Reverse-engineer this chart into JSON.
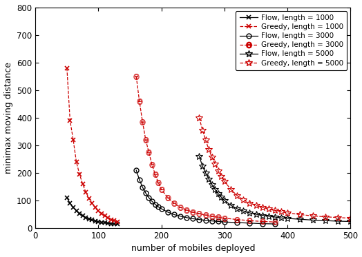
{
  "title": "",
  "xlabel": "number of mobiles deployed",
  "ylabel": "minimax moving distance",
  "xlim": [
    0,
    500
  ],
  "ylim": [
    0,
    800
  ],
  "xticks": [
    0,
    100,
    200,
    300,
    400,
    500
  ],
  "yticks": [
    0,
    100,
    200,
    300,
    400,
    500,
    600,
    700,
    800
  ],
  "legend_entries": [
    "Flow, length = 1000",
    "Greedy, length = 1000",
    "Flow, length = 3000",
    "Greedy, length = 3000",
    "Flow, length = 5000",
    "Greedy, length = 5000"
  ],
  "flow_color": "#000000",
  "greedy_color": "#cc0000",
  "series": {
    "flow_1000": {
      "x": [
        50,
        55,
        60,
        65,
        70,
        75,
        80,
        85,
        90,
        95,
        100,
        105,
        110,
        115,
        120,
        125,
        130
      ],
      "y": [
        110,
        90,
        75,
        62,
        52,
        44,
        38,
        33,
        29,
        26,
        23,
        21,
        19,
        17,
        16,
        15,
        14
      ]
    },
    "greedy_1000": {
      "x": [
        50,
        55,
        60,
        65,
        70,
        75,
        80,
        85,
        90,
        95,
        100,
        105,
        110,
        115,
        120,
        125,
        130
      ],
      "y": [
        580,
        390,
        320,
        240,
        195,
        160,
        130,
        108,
        90,
        75,
        62,
        52,
        44,
        37,
        31,
        27,
        23
      ]
    },
    "flow_3000": {
      "x": [
        160,
        165,
        170,
        175,
        180,
        185,
        190,
        195,
        200,
        210,
        220,
        230,
        240,
        250,
        260,
        270,
        280,
        290,
        300,
        320,
        340,
        360,
        380
      ],
      "y": [
        210,
        175,
        148,
        127,
        110,
        97,
        86,
        77,
        70,
        58,
        49,
        43,
        38,
        34,
        31,
        28,
        26,
        24,
        22,
        20,
        18,
        16,
        15
      ]
    },
    "greedy_3000": {
      "x": [
        160,
        165,
        170,
        175,
        180,
        185,
        190,
        195,
        200,
        210,
        220,
        230,
        240,
        250,
        260,
        270,
        280,
        290,
        300,
        320,
        340,
        360,
        380
      ],
      "y": [
        550,
        460,
        385,
        320,
        275,
        230,
        195,
        165,
        140,
        110,
        90,
        75,
        65,
        58,
        52,
        47,
        43,
        39,
        36,
        31,
        27,
        24,
        22
      ]
    },
    "flow_5000": {
      "x": [
        260,
        265,
        270,
        275,
        280,
        285,
        290,
        295,
        300,
        310,
        320,
        330,
        340,
        350,
        360,
        370,
        380,
        390,
        400,
        420,
        440,
        460,
        480,
        500
      ],
      "y": [
        260,
        225,
        200,
        178,
        158,
        140,
        125,
        112,
        100,
        83,
        70,
        62,
        55,
        50,
        46,
        43,
        40,
        37,
        35,
        32,
        29,
        27,
        25,
        24
      ]
    },
    "greedy_5000": {
      "x": [
        260,
        265,
        270,
        275,
        280,
        285,
        290,
        295,
        300,
        310,
        320,
        330,
        340,
        350,
        360,
        370,
        380,
        390,
        400,
        420,
        440,
        460,
        480,
        500
      ],
      "y": [
        400,
        355,
        320,
        285,
        258,
        232,
        208,
        188,
        170,
        140,
        118,
        103,
        91,
        82,
        75,
        69,
        64,
        59,
        55,
        49,
        44,
        41,
        38,
        36
      ]
    }
  }
}
